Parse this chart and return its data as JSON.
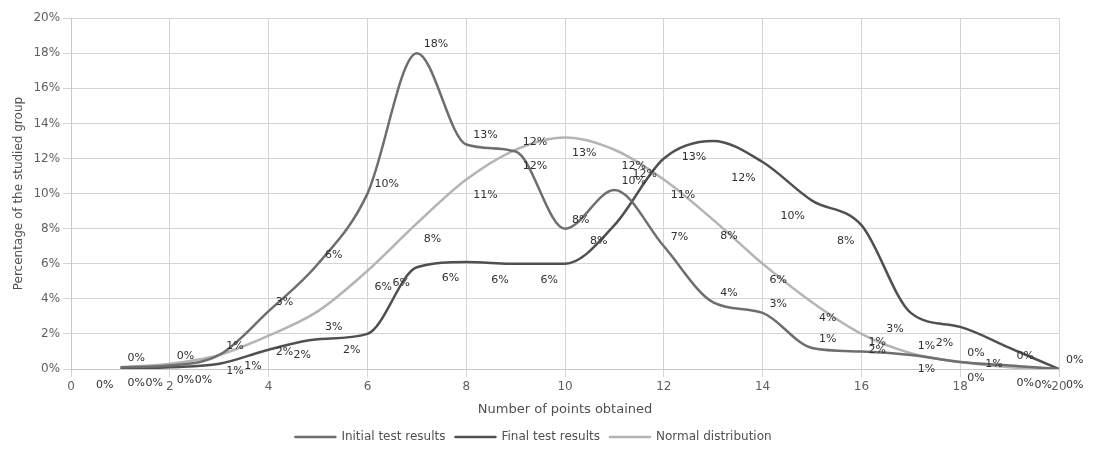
{
  "chart_data": {
    "type": "line",
    "xlabel": "Number of points obtained",
    "ylabel": "Percentage of the studied group",
    "x": [
      1,
      2,
      3,
      4,
      5,
      6,
      7,
      8,
      9,
      10,
      11,
      12,
      13,
      14,
      15,
      16,
      17,
      18,
      19,
      20
    ],
    "series": [
      {
        "name": "Initial test results",
        "color": "#6e6e6e",
        "values": [
          0.1,
          0.2,
          0.8,
          3.3,
          6,
          10,
          18,
          12.8,
          12.4,
          8,
          10.2,
          7,
          3.8,
          3.2,
          1.2,
          1,
          0.8,
          0.4,
          0.2,
          0
        ],
        "value_labels": [
          "0%",
          "0%",
          "1%",
          "3%",
          "6%",
          "10%",
          "18%",
          "13%",
          "12%",
          "8%",
          "10%",
          "7%",
          "4%",
          "3%",
          "1%",
          "1%",
          "1%",
          "0%",
          "0%",
          "0%"
        ]
      },
      {
        "name": "Final test results",
        "color": "#505050",
        "values": [
          0,
          0.1,
          0.3,
          1.1,
          1.7,
          2,
          5.8,
          6.1,
          6,
          6,
          8.2,
          12,
          13,
          11.8,
          9.6,
          8.2,
          3.2,
          2.4,
          1.2,
          0
        ],
        "value_labels": [
          "0%",
          "0%",
          "0%",
          "1%",
          "2%",
          "2%",
          "6%",
          "6%",
          "6%",
          "6%",
          "8%",
          "12%",
          "13%",
          "12%",
          "10%",
          "8%",
          "3%",
          "2%",
          "1%",
          "0%"
        ]
      },
      {
        "name": "Normal distribution",
        "color": "#b4b4b4",
        "values": [
          0.1,
          0.3,
          0.8,
          1.9,
          3.3,
          5.6,
          8.3,
          10.8,
          12.5,
          13.2,
          12.5,
          10.8,
          8.5,
          6,
          3.8,
          2,
          0.9,
          0.4,
          0.1,
          0
        ],
        "value_labels": [
          "0%",
          "0%",
          "1%",
          "2%",
          "3%",
          "6%",
          "8%",
          "11%",
          "12%",
          "13%",
          "12%",
          "11%",
          "8%",
          "6%",
          "4%",
          "2%",
          "1%",
          "0%",
          "0%",
          "0%"
        ]
      }
    ],
    "xlim": [
      0,
      20
    ],
    "xticks": [
      0,
      2,
      4,
      6,
      8,
      10,
      12,
      14,
      16,
      18,
      20
    ],
    "ylim": [
      0,
      20
    ],
    "yticks": [
      {
        "value": 0,
        "label": "0%"
      },
      {
        "value": 2,
        "label": "2%"
      },
      {
        "value": 4,
        "label": "4%"
      },
      {
        "value": 6,
        "label": "6%"
      },
      {
        "value": 8,
        "label": "8%"
      },
      {
        "value": 10,
        "label": "10%"
      },
      {
        "value": 12,
        "label": "12%"
      },
      {
        "value": 14,
        "label": "14%"
      },
      {
        "value": 16,
        "label": "16%"
      },
      {
        "value": 18,
        "label": "18%"
      },
      {
        "value": 20,
        "label": "20%"
      }
    ],
    "grid": true,
    "legend": "bottom",
    "marker": "none",
    "line_style": "solid"
  }
}
